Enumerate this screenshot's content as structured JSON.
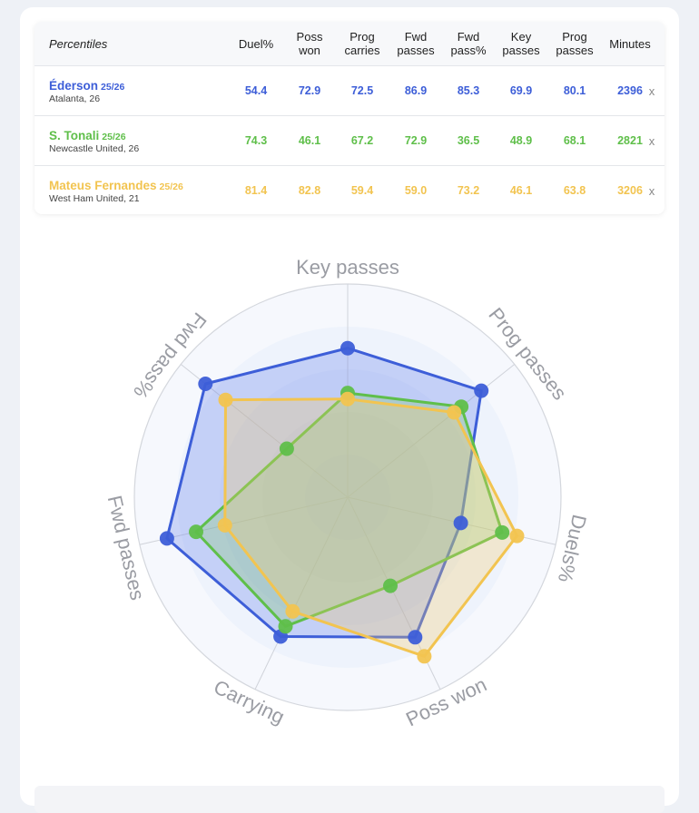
{
  "table": {
    "percentiles_label": "Percentiles",
    "columns": [
      {
        "line1": "Duel%",
        "line2": ""
      },
      {
        "line1": "Poss",
        "line2": "won"
      },
      {
        "line1": "Prog",
        "line2": "carries"
      },
      {
        "line1": "Fwd",
        "line2": "passes"
      },
      {
        "line1": "Fwd",
        "line2": "pass%"
      },
      {
        "line1": "Key",
        "line2": "passes"
      },
      {
        "line1": "Prog",
        "line2": "passes"
      },
      {
        "line1": "Minutes",
        "line2": ""
      }
    ],
    "rows": [
      {
        "name": "Éderson",
        "season": "25/26",
        "team": "Atalanta, 26",
        "color": "#3d5ed8",
        "values": [
          "54.4",
          "72.9",
          "72.5",
          "86.9",
          "85.3",
          "69.9",
          "80.1",
          "2396"
        ],
        "remove": "x"
      },
      {
        "name": "S. Tonali",
        "season": "25/26",
        "team": "Newcastle United, 26",
        "color": "#5fbf4a",
        "values": [
          "74.3",
          "46.1",
          "67.2",
          "72.9",
          "36.5",
          "48.9",
          "68.1",
          "2821"
        ],
        "remove": "x"
      },
      {
        "name": "Mateus Fernandes",
        "season": "25/26",
        "team": "West Ham United, 21",
        "color": "#f2c450",
        "values": [
          "81.4",
          "82.8",
          "59.4",
          "59.0",
          "73.2",
          "46.1",
          "63.8",
          "3206"
        ],
        "remove": "x"
      }
    ]
  },
  "chart_data": {
    "type": "radar",
    "axes": [
      "Key passes",
      "Prog passes",
      "Duels%",
      "Poss won",
      "Carrying",
      "Fwd passes",
      "Fwd pass%"
    ],
    "range": [
      0,
      100
    ],
    "series": [
      {
        "name": "Éderson",
        "color": "#3d5ed8",
        "values": [
          69.9,
          80.1,
          54.4,
          72.9,
          72.5,
          86.9,
          85.3
        ]
      },
      {
        "name": "S. Tonali",
        "color": "#5fbf4a",
        "values": [
          48.9,
          68.1,
          74.3,
          46.1,
          67.2,
          72.9,
          36.5
        ]
      },
      {
        "name": "Mateus Fernandes",
        "color": "#f2c450",
        "values": [
          46.1,
          63.8,
          81.4,
          82.8,
          59.4,
          59.0,
          73.2
        ]
      }
    ]
  }
}
